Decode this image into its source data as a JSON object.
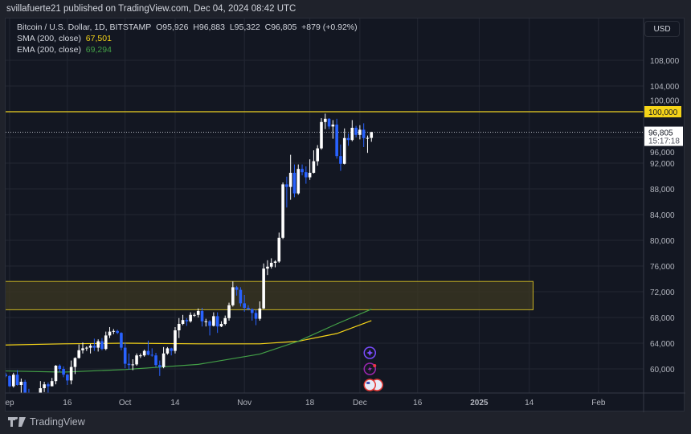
{
  "published": "svillafuerte21 published on TradingView.com, Dec 04, 2024 08:42 UTC",
  "legend": {
    "symbol": "Bitcoin / U.S. Dollar, 1D, BITSTAMP",
    "open": "O95,926",
    "high": "H96,883",
    "low": "L95,322",
    "close": "C96,805",
    "change": "+879 (+0.92%)",
    "sma_label": "SMA (200, close)",
    "sma_value": "67,501",
    "ema_label": "EMA (200, close)",
    "ema_value": "69,294"
  },
  "currency": "USD",
  "footer": {
    "brand": "TradingView"
  },
  "colors": {
    "up": "#ffffff",
    "down": "#2962ff",
    "sma": "#f5d418",
    "ema": "#43a047",
    "level": "#c9b423",
    "zone": "#3a3622",
    "background": "#131722"
  },
  "chart_data": {
    "type": "candlestick",
    "title": "Bitcoin / U.S. Dollar, 1D, BITSTAMP",
    "ylim": [
      56000,
      112000
    ],
    "grid": true,
    "y_ticks": [
      "108,000",
      "104,000",
      "100,000",
      "96,000",
      "92,000",
      "88,000",
      "84,000",
      "80,000",
      "76,000",
      "72,000",
      "68,000",
      "64,000",
      "60,000"
    ],
    "y_tick_values": [
      108000,
      104000,
      100000,
      96000,
      92000,
      88000,
      84000,
      80000,
      76000,
      72000,
      68000,
      64000,
      60000
    ],
    "x_ticks": [
      {
        "label": "ep",
        "date": "2024-09-01"
      },
      {
        "label": "16",
        "date": "2024-09-16"
      },
      {
        "label": "Oct",
        "date": "2024-10-01"
      },
      {
        "label": "14",
        "date": "2024-10-14"
      },
      {
        "label": "Nov",
        "date": "2024-11-01"
      },
      {
        "label": "18",
        "date": "2024-11-18"
      },
      {
        "label": "Dec",
        "date": "2024-12-01"
      },
      {
        "label": "16",
        "date": "2024-12-16"
      },
      {
        "label": "2025",
        "date": "2025-01-01",
        "bold": true
      },
      {
        "label": "14",
        "date": "2025-01-14"
      },
      {
        "label": "Feb",
        "date": "2025-02-01"
      }
    ],
    "x_range": [
      "2024-08-29",
      "2025-02-20"
    ],
    "last_price": {
      "label": "96,805",
      "value": 96805,
      "countdown": "15:17:18"
    },
    "horizontal_level": {
      "label": "100,000",
      "value": 100000
    },
    "zone": {
      "top": 73600,
      "bottom": 69200,
      "from": "2024-08-29",
      "to": "2025-01-15"
    },
    "candles_fields": [
      "date",
      "open",
      "high",
      "low",
      "close"
    ],
    "candles": [
      [
        "2024-08-29",
        59400,
        61100,
        58800,
        59000
      ],
      [
        "2024-08-30",
        59000,
        59800,
        57900,
        59100
      ],
      [
        "2024-08-31",
        59100,
        59400,
        58700,
        58900
      ],
      [
        "2024-09-01",
        58900,
        59000,
        57200,
        57300
      ],
      [
        "2024-09-02",
        57300,
        59400,
        57100,
        59100
      ],
      [
        "2024-09-03",
        59100,
        59800,
        57400,
        57500
      ],
      [
        "2024-09-04",
        57500,
        58500,
        55600,
        58000
      ],
      [
        "2024-09-05",
        58000,
        58300,
        55700,
        56200
      ],
      [
        "2024-09-06",
        56200,
        56900,
        52600,
        53900
      ],
      [
        "2024-09-07",
        53900,
        54800,
        53800,
        54100
      ],
      [
        "2024-09-08",
        54100,
        55300,
        53600,
        54800
      ],
      [
        "2024-09-09",
        54800,
        58100,
        54600,
        57000
      ],
      [
        "2024-09-10",
        57000,
        58000,
        56400,
        57600
      ],
      [
        "2024-09-11",
        57600,
        57900,
        55600,
        57300
      ],
      [
        "2024-09-12",
        57300,
        58600,
        57300,
        58100
      ],
      [
        "2024-09-13",
        58100,
        60600,
        57600,
        60500
      ],
      [
        "2024-09-14",
        60500,
        60700,
        59500,
        60000
      ],
      [
        "2024-09-15",
        60000,
        60400,
        58700,
        59100
      ],
      [
        "2024-09-16",
        59100,
        59200,
        57500,
        58200
      ],
      [
        "2024-09-17",
        58200,
        61300,
        57600,
        60300
      ],
      [
        "2024-09-18",
        60300,
        61800,
        59200,
        61700
      ],
      [
        "2024-09-19",
        61700,
        63800,
        61600,
        62900
      ],
      [
        "2024-09-20",
        62900,
        64100,
        62400,
        63200
      ],
      [
        "2024-09-21",
        63200,
        63500,
        62800,
        63300
      ],
      [
        "2024-09-22",
        63300,
        63900,
        62400,
        63600
      ],
      [
        "2024-09-23",
        63600,
        64700,
        62800,
        63300
      ],
      [
        "2024-09-24",
        63300,
        64600,
        62700,
        64300
      ],
      [
        "2024-09-25",
        64300,
        64800,
        62900,
        63100
      ],
      [
        "2024-09-26",
        63100,
        65800,
        62900,
        65200
      ],
      [
        "2024-09-27",
        65200,
        66500,
        64800,
        65800
      ],
      [
        "2024-09-28",
        65800,
        66200,
        65400,
        65900
      ],
      [
        "2024-09-29",
        65900,
        66100,
        65400,
        65600
      ],
      [
        "2024-09-30",
        65600,
        65700,
        62900,
        63300
      ],
      [
        "2024-10-01",
        63300,
        64100,
        60100,
        60800
      ],
      [
        "2024-10-02",
        60800,
        62400,
        59900,
        60600
      ],
      [
        "2024-10-03",
        60600,
        61500,
        59800,
        60700
      ],
      [
        "2024-10-04",
        60700,
        62400,
        60500,
        62100
      ],
      [
        "2024-10-05",
        62100,
        62400,
        61700,
        62100
      ],
      [
        "2024-10-06",
        62100,
        63000,
        61900,
        62800
      ],
      [
        "2024-10-07",
        62800,
        64400,
        62100,
        62200
      ],
      [
        "2024-10-08",
        62200,
        63200,
        61900,
        62100
      ],
      [
        "2024-10-09",
        62100,
        62500,
        60300,
        60600
      ],
      [
        "2024-10-10",
        60600,
        61300,
        58900,
        60300
      ],
      [
        "2024-10-11",
        60300,
        63400,
        60100,
        62400
      ],
      [
        "2024-10-12",
        62400,
        63400,
        62200,
        63200
      ],
      [
        "2024-10-13",
        63200,
        63300,
        62100,
        62800
      ],
      [
        "2024-10-14",
        62800,
        66500,
        62400,
        66000
      ],
      [
        "2024-10-15",
        66000,
        67900,
        64800,
        67000
      ],
      [
        "2024-10-16",
        67000,
        68400,
        66800,
        67600
      ],
      [
        "2024-10-17",
        67600,
        67900,
        66700,
        67400
      ],
      [
        "2024-10-18",
        67400,
        68800,
        67200,
        68400
      ],
      [
        "2024-10-19",
        68400,
        68700,
        68100,
        68400
      ],
      [
        "2024-10-20",
        68400,
        69400,
        68000,
        69000
      ],
      [
        "2024-10-21",
        69000,
        69500,
        66600,
        67400
      ],
      [
        "2024-10-22",
        67400,
        67800,
        66600,
        67400
      ],
      [
        "2024-10-23",
        67400,
        67600,
        65200,
        66700
      ],
      [
        "2024-10-24",
        66700,
        68800,
        66600,
        68200
      ],
      [
        "2024-10-25",
        68200,
        68800,
        65600,
        66600
      ],
      [
        "2024-10-26",
        66600,
        67400,
        66500,
        67000
      ],
      [
        "2024-10-27",
        67000,
        68300,
        66800,
        67900
      ],
      [
        "2024-10-28",
        67900,
        70300,
        67500,
        69900
      ],
      [
        "2024-10-29",
        69900,
        73600,
        69700,
        72700
      ],
      [
        "2024-10-30",
        72700,
        72900,
        71400,
        72300
      ],
      [
        "2024-10-31",
        72300,
        72700,
        69700,
        70200
      ],
      [
        "2024-11-01",
        70200,
        71500,
        68900,
        69500
      ],
      [
        "2024-11-02",
        69500,
        69900,
        69100,
        69300
      ],
      [
        "2024-11-03",
        69300,
        69400,
        67500,
        68700
      ],
      [
        "2024-11-04",
        68700,
        69200,
        66800,
        67800
      ],
      [
        "2024-11-05",
        67800,
        70500,
        67500,
        69400
      ],
      [
        "2024-11-06",
        69400,
        76400,
        69300,
        75600
      ],
      [
        "2024-11-07",
        75600,
        76900,
        74600,
        75900
      ],
      [
        "2024-11-08",
        75900,
        77200,
        75600,
        76500
      ],
      [
        "2024-11-09",
        76500,
        76900,
        75800,
        76700
      ],
      [
        "2024-11-10",
        76700,
        81200,
        76500,
        80400
      ],
      [
        "2024-11-11",
        80400,
        89000,
        80200,
        88700
      ],
      [
        "2024-11-12",
        88700,
        89900,
        85100,
        88300
      ],
      [
        "2024-11-13",
        88300,
        93300,
        86300,
        90500
      ],
      [
        "2024-11-14",
        90500,
        91800,
        86700,
        87300
      ],
      [
        "2024-11-15",
        87300,
        91800,
        87100,
        91100
      ],
      [
        "2024-11-16",
        91100,
        91800,
        90100,
        90600
      ],
      [
        "2024-11-17",
        90600,
        91500,
        88800,
        89800
      ],
      [
        "2024-11-18",
        89800,
        92600,
        89400,
        90500
      ],
      [
        "2024-11-19",
        90500,
        94000,
        90400,
        92300
      ],
      [
        "2024-11-20",
        92300,
        94800,
        91600,
        94300
      ],
      [
        "2024-11-21",
        94300,
        99000,
        94100,
        98400
      ],
      [
        "2024-11-22",
        98400,
        99700,
        97300,
        98900
      ],
      [
        "2024-11-23",
        98900,
        99000,
        97300,
        97700
      ],
      [
        "2024-11-24",
        97700,
        98700,
        95800,
        98000
      ],
      [
        "2024-11-25",
        98000,
        98900,
        92700,
        93100
      ],
      [
        "2024-11-26",
        93100,
        94900,
        90800,
        91900
      ],
      [
        "2024-11-27",
        91900,
        97400,
        91800,
        95900
      ],
      [
        "2024-11-28",
        95900,
        96600,
        94700,
        95600
      ],
      [
        "2024-11-29",
        95600,
        98700,
        95400,
        97500
      ],
      [
        "2024-11-30",
        97500,
        97800,
        96000,
        96400
      ],
      [
        "2024-12-01",
        96400,
        97900,
        95700,
        97200
      ],
      [
        "2024-12-02",
        97200,
        98200,
        94500,
        95900
      ],
      [
        "2024-12-03",
        95900,
        96300,
        93600,
        95926
      ],
      [
        "2024-12-04",
        95926,
        96883,
        95322,
        96805
      ]
    ],
    "sma": {
      "name": "SMA (200, close)",
      "points": [
        [
          "2024-08-29",
          63700
        ],
        [
          "2024-09-15",
          63900
        ],
        [
          "2024-10-01",
          64000
        ],
        [
          "2024-10-20",
          63900
        ],
        [
          "2024-11-05",
          63900
        ],
        [
          "2024-11-15",
          64300
        ],
        [
          "2024-11-25",
          65500
        ],
        [
          "2024-12-04",
          67501
        ]
      ]
    },
    "ema": {
      "name": "EMA (200, close)",
      "points": [
        [
          "2024-08-29",
          59700
        ],
        [
          "2024-09-15",
          59500
        ],
        [
          "2024-10-01",
          59900
        ],
        [
          "2024-10-20",
          60700
        ],
        [
          "2024-11-05",
          62300
        ],
        [
          "2024-11-15",
          64300
        ],
        [
          "2024-11-25",
          67000
        ],
        [
          "2024-12-04",
          69294
        ]
      ]
    },
    "events": [
      {
        "icon": "sparkle-event-icon",
        "color": "#7b4dff"
      },
      {
        "icon": "lightning-event-icon",
        "color": "#9c27b0"
      },
      {
        "icon": "us-flag-event-icon",
        "color": "#e53935"
      }
    ]
  }
}
